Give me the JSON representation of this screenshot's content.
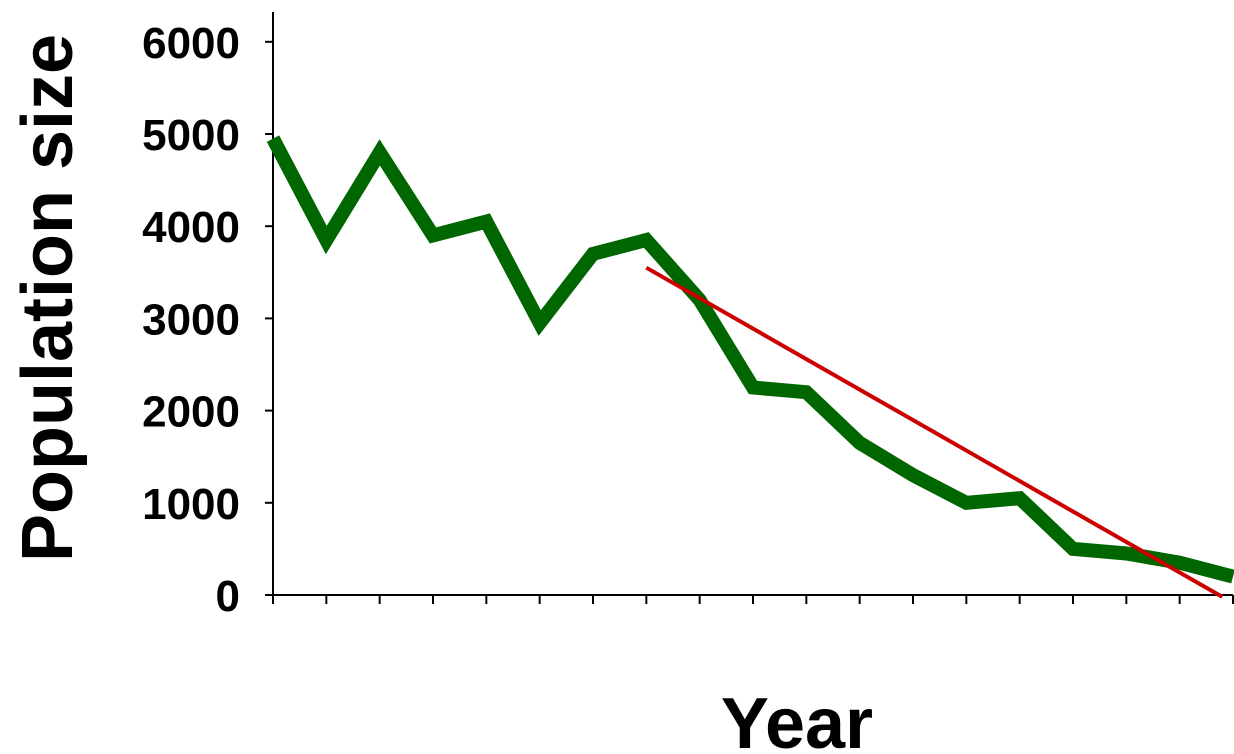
{
  "chart_data": {
    "type": "line",
    "xlabel": "Year",
    "ylabel": "Population size",
    "ylim": [
      0,
      6000
    ],
    "yticks": [
      0,
      1000,
      2000,
      3000,
      4000,
      5000,
      6000
    ],
    "grid": false,
    "x_tick_count": 18,
    "series": [
      {
        "color": "#006600",
        "values": [
          4950,
          3850,
          4800,
          3900,
          4050,
          2950,
          3700,
          3850,
          3200,
          2250,
          2200,
          1650,
          1300,
          1000,
          1050,
          500,
          450,
          350,
          200
        ]
      },
      {
        "color": "#cc0000",
        "style": "trend",
        "points": [
          [
            7.0,
            3550
          ],
          [
            17.8,
            -20
          ]
        ]
      }
    ]
  }
}
